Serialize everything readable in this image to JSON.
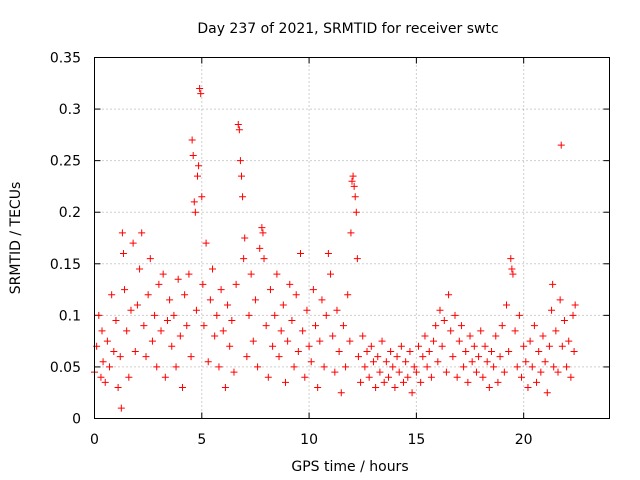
{
  "chart_data": {
    "type": "scatter",
    "title": "Day 237 of 2021, SRMTID for receiver swtc",
    "xlabel": "GPS time / hours",
    "ylabel": "SRMTID / TECUs",
    "xlim": [
      0,
      24
    ],
    "ylim": [
      0,
      0.35
    ],
    "xticks": [
      0,
      5,
      10,
      15,
      20
    ],
    "yticks": [
      0,
      0.05,
      0.1,
      0.15,
      0.2,
      0.25,
      0.3,
      0.35
    ],
    "xtick_labels": [
      "0",
      "5",
      "10",
      "15",
      "20"
    ],
    "ytick_labels": [
      "0",
      "0.05",
      "0.1",
      "0.15",
      "0.2",
      "0.25",
      "0.3",
      "0.35"
    ],
    "grid": true,
    "marker": "+",
    "color": "#ff0000",
    "series": [
      {
        "name": "swtc",
        "points": [
          [
            0.0,
            0.045
          ],
          [
            0.1,
            0.07
          ],
          [
            0.2,
            0.1
          ],
          [
            0.3,
            0.04
          ],
          [
            0.35,
            0.085
          ],
          [
            0.4,
            0.055
          ],
          [
            0.5,
            0.035
          ],
          [
            0.6,
            0.075
          ],
          [
            0.7,
            0.05
          ],
          [
            0.8,
            0.12
          ],
          [
            0.9,
            0.065
          ],
          [
            1.0,
            0.095
          ],
          [
            1.1,
            0.03
          ],
          [
            1.2,
            0.06
          ],
          [
            1.25,
            0.01
          ],
          [
            1.3,
            0.18
          ],
          [
            1.35,
            0.16
          ],
          [
            1.4,
            0.125
          ],
          [
            1.5,
            0.085
          ],
          [
            1.6,
            0.04
          ],
          [
            1.7,
            0.105
          ],
          [
            1.8,
            0.17
          ],
          [
            1.9,
            0.065
          ],
          [
            2.0,
            0.11
          ],
          [
            2.1,
            0.145
          ],
          [
            2.2,
            0.18
          ],
          [
            2.3,
            0.09
          ],
          [
            2.4,
            0.06
          ],
          [
            2.5,
            0.12
          ],
          [
            2.6,
            0.155
          ],
          [
            2.7,
            0.075
          ],
          [
            2.8,
            0.1
          ],
          [
            2.9,
            0.05
          ],
          [
            3.0,
            0.13
          ],
          [
            3.1,
            0.085
          ],
          [
            3.2,
            0.14
          ],
          [
            3.3,
            0.04
          ],
          [
            3.4,
            0.095
          ],
          [
            3.5,
            0.115
          ],
          [
            3.6,
            0.07
          ],
          [
            3.7,
            0.1
          ],
          [
            3.8,
            0.05
          ],
          [
            3.9,
            0.135
          ],
          [
            4.0,
            0.08
          ],
          [
            4.1,
            0.03
          ],
          [
            4.2,
            0.12
          ],
          [
            4.3,
            0.09
          ],
          [
            4.4,
            0.14
          ],
          [
            4.5,
            0.06
          ],
          [
            4.55,
            0.27
          ],
          [
            4.6,
            0.255
          ],
          [
            4.65,
            0.21
          ],
          [
            4.7,
            0.2
          ],
          [
            4.75,
            0.105
          ],
          [
            4.8,
            0.235
          ],
          [
            4.85,
            0.245
          ],
          [
            4.9,
            0.32
          ],
          [
            4.95,
            0.315
          ],
          [
            5.0,
            0.215
          ],
          [
            5.05,
            0.13
          ],
          [
            5.1,
            0.09
          ],
          [
            5.2,
            0.17
          ],
          [
            5.3,
            0.055
          ],
          [
            5.4,
            0.115
          ],
          [
            5.5,
            0.145
          ],
          [
            5.6,
            0.08
          ],
          [
            5.7,
            0.1
          ],
          [
            5.8,
            0.05
          ],
          [
            5.9,
            0.125
          ],
          [
            6.0,
            0.085
          ],
          [
            6.1,
            0.03
          ],
          [
            6.2,
            0.11
          ],
          [
            6.3,
            0.07
          ],
          [
            6.4,
            0.095
          ],
          [
            6.5,
            0.045
          ],
          [
            6.6,
            0.13
          ],
          [
            6.7,
            0.285
          ],
          [
            6.75,
            0.28
          ],
          [
            6.8,
            0.25
          ],
          [
            6.85,
            0.235
          ],
          [
            6.9,
            0.215
          ],
          [
            6.95,
            0.155
          ],
          [
            7.0,
            0.175
          ],
          [
            7.1,
            0.06
          ],
          [
            7.2,
            0.1
          ],
          [
            7.3,
            0.14
          ],
          [
            7.4,
            0.075
          ],
          [
            7.5,
            0.115
          ],
          [
            7.6,
            0.05
          ],
          [
            7.7,
            0.165
          ],
          [
            7.8,
            0.185
          ],
          [
            7.85,
            0.18
          ],
          [
            7.9,
            0.155
          ],
          [
            8.0,
            0.09
          ],
          [
            8.1,
            0.04
          ],
          [
            8.2,
            0.125
          ],
          [
            8.3,
            0.07
          ],
          [
            8.4,
            0.1
          ],
          [
            8.5,
            0.14
          ],
          [
            8.6,
            0.06
          ],
          [
            8.7,
            0.085
          ],
          [
            8.8,
            0.11
          ],
          [
            8.9,
            0.035
          ],
          [
            9.0,
            0.075
          ],
          [
            9.1,
            0.13
          ],
          [
            9.2,
            0.095
          ],
          [
            9.3,
            0.05
          ],
          [
            9.4,
            0.12
          ],
          [
            9.5,
            0.065
          ],
          [
            9.6,
            0.16
          ],
          [
            9.7,
            0.085
          ],
          [
            9.8,
            0.04
          ],
          [
            9.9,
            0.105
          ],
          [
            10.0,
            0.07
          ],
          [
            10.1,
            0.055
          ],
          [
            10.2,
            0.125
          ],
          [
            10.3,
            0.09
          ],
          [
            10.4,
            0.03
          ],
          [
            10.5,
            0.075
          ],
          [
            10.6,
            0.115
          ],
          [
            10.7,
            0.05
          ],
          [
            10.8,
            0.1
          ],
          [
            10.9,
            0.16
          ],
          [
            11.0,
            0.14
          ],
          [
            11.1,
            0.08
          ],
          [
            11.2,
            0.045
          ],
          [
            11.3,
            0.105
          ],
          [
            11.4,
            0.065
          ],
          [
            11.5,
            0.025
          ],
          [
            11.6,
            0.09
          ],
          [
            11.7,
            0.05
          ],
          [
            11.8,
            0.12
          ],
          [
            11.9,
            0.075
          ],
          [
            11.95,
            0.18
          ],
          [
            12.0,
            0.23
          ],
          [
            12.05,
            0.235
          ],
          [
            12.1,
            0.225
          ],
          [
            12.15,
            0.215
          ],
          [
            12.2,
            0.2
          ],
          [
            12.25,
            0.155
          ],
          [
            12.3,
            0.06
          ],
          [
            12.4,
            0.035
          ],
          [
            12.5,
            0.08
          ],
          [
            12.6,
            0.05
          ],
          [
            12.7,
            0.065
          ],
          [
            12.8,
            0.04
          ],
          [
            12.9,
            0.07
          ],
          [
            13.0,
            0.055
          ],
          [
            13.1,
            0.03
          ],
          [
            13.2,
            0.06
          ],
          [
            13.3,
            0.045
          ],
          [
            13.4,
            0.075
          ],
          [
            13.5,
            0.035
          ],
          [
            13.6,
            0.055
          ],
          [
            13.7,
            0.04
          ],
          [
            13.8,
            0.065
          ],
          [
            13.9,
            0.05
          ],
          [
            14.0,
            0.03
          ],
          [
            14.1,
            0.06
          ],
          [
            14.2,
            0.045
          ],
          [
            14.3,
            0.07
          ],
          [
            14.4,
            0.035
          ],
          [
            14.5,
            0.055
          ],
          [
            14.6,
            0.04
          ],
          [
            14.7,
            0.065
          ],
          [
            14.8,
            0.025
          ],
          [
            14.9,
            0.05
          ],
          [
            15.0,
            0.045
          ],
          [
            15.1,
            0.07
          ],
          [
            15.2,
            0.035
          ],
          [
            15.3,
            0.06
          ],
          [
            15.4,
            0.08
          ],
          [
            15.5,
            0.05
          ],
          [
            15.6,
            0.065
          ],
          [
            15.7,
            0.04
          ],
          [
            15.8,
            0.075
          ],
          [
            15.9,
            0.09
          ],
          [
            16.0,
            0.055
          ],
          [
            16.1,
            0.105
          ],
          [
            16.2,
            0.07
          ],
          [
            16.3,
            0.095
          ],
          [
            16.4,
            0.045
          ],
          [
            16.5,
            0.12
          ],
          [
            16.6,
            0.085
          ],
          [
            16.7,
            0.06
          ],
          [
            16.8,
            0.1
          ],
          [
            16.9,
            0.04
          ],
          [
            17.0,
            0.075
          ],
          [
            17.1,
            0.09
          ],
          [
            17.2,
            0.05
          ],
          [
            17.3,
            0.065
          ],
          [
            17.4,
            0.035
          ],
          [
            17.5,
            0.08
          ],
          [
            17.6,
            0.055
          ],
          [
            17.7,
            0.07
          ],
          [
            17.8,
            0.045
          ],
          [
            17.9,
            0.06
          ],
          [
            18.0,
            0.085
          ],
          [
            18.1,
            0.04
          ],
          [
            18.2,
            0.07
          ],
          [
            18.3,
            0.055
          ],
          [
            18.4,
            0.03
          ],
          [
            18.5,
            0.065
          ],
          [
            18.6,
            0.05
          ],
          [
            18.7,
            0.08
          ],
          [
            18.8,
            0.035
          ],
          [
            18.9,
            0.06
          ],
          [
            19.0,
            0.09
          ],
          [
            19.1,
            0.045
          ],
          [
            19.2,
            0.11
          ],
          [
            19.3,
            0.065
          ],
          [
            19.4,
            0.155
          ],
          [
            19.45,
            0.145
          ],
          [
            19.5,
            0.14
          ],
          [
            19.6,
            0.085
          ],
          [
            19.7,
            0.05
          ],
          [
            19.8,
            0.1
          ],
          [
            19.9,
            0.04
          ],
          [
            20.0,
            0.07
          ],
          [
            20.1,
            0.055
          ],
          [
            20.2,
            0.03
          ],
          [
            20.3,
            0.075
          ],
          [
            20.4,
            0.05
          ],
          [
            20.5,
            0.09
          ],
          [
            20.6,
            0.035
          ],
          [
            20.7,
            0.065
          ],
          [
            20.8,
            0.045
          ],
          [
            20.9,
            0.08
          ],
          [
            21.0,
            0.055
          ],
          [
            21.1,
            0.025
          ],
          [
            21.2,
            0.07
          ],
          [
            21.3,
            0.105
          ],
          [
            21.35,
            0.13
          ],
          [
            21.4,
            0.05
          ],
          [
            21.5,
            0.085
          ],
          [
            21.6,
            0.045
          ],
          [
            21.7,
            0.115
          ],
          [
            21.75,
            0.265
          ],
          [
            21.8,
            0.07
          ],
          [
            21.9,
            0.095
          ],
          [
            22.0,
            0.05
          ],
          [
            22.1,
            0.075
          ],
          [
            22.2,
            0.04
          ],
          [
            22.3,
            0.1
          ],
          [
            22.35,
            0.065
          ],
          [
            22.4,
            0.11
          ]
        ]
      }
    ]
  }
}
